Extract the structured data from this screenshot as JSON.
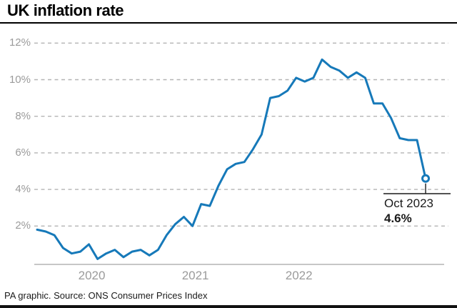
{
  "header": {
    "title": "UK inflation rate"
  },
  "footer": {
    "credit": "PA graphic. Source: ONS Consumer Prices Index"
  },
  "annotation": {
    "date_label": "Oct 2023",
    "value_label": "4.6%"
  },
  "colors": {
    "line": "#1679b9",
    "grid": "#b4b4b4",
    "axis_line": "#b4b4b4",
    "axis_text": "#9b9b9b",
    "title": "#000000",
    "annotation_text": "#1a1a1a",
    "background": "#ffffff",
    "bottom_bar": "#111111"
  },
  "chart_data": {
    "type": "line",
    "title": "UK inflation rate",
    "xlabel": "",
    "ylabel": "",
    "frequency": "monthly",
    "x_range": [
      "Jan 2020",
      "Oct 2023"
    ],
    "x_tick_labels": [
      "2020",
      "2021",
      "2022"
    ],
    "y_ticks": [
      {
        "value": 2,
        "label": "2%"
      },
      {
        "value": 4,
        "label": "4%"
      },
      {
        "value": 6,
        "label": "6%"
      },
      {
        "value": 8,
        "label": "8%"
      },
      {
        "value": 10,
        "label": "10%"
      },
      {
        "value": 12,
        "label": "12%"
      }
    ],
    "ylim": [
      0,
      13
    ],
    "grid": "horizontal-dashed",
    "legend_position": "none",
    "months": [
      "Jan 2020",
      "Feb 2020",
      "Mar 2020",
      "Apr 2020",
      "May 2020",
      "Jun 2020",
      "Jul 2020",
      "Aug 2020",
      "Sep 2020",
      "Oct 2020",
      "Nov 2020",
      "Dec 2020",
      "Jan 2021",
      "Feb 2021",
      "Mar 2021",
      "Apr 2021",
      "May 2021",
      "Jun 2021",
      "Jul 2021",
      "Aug 2021",
      "Sep 2021",
      "Oct 2021",
      "Nov 2021",
      "Dec 2021",
      "Jan 2022",
      "Feb 2022",
      "Mar 2022",
      "Apr 2022",
      "May 2022",
      "Jun 2022",
      "Jul 2022",
      "Aug 2022",
      "Sep 2022",
      "Oct 2022",
      "Nov 2022",
      "Dec 2022",
      "Jan 2023",
      "Feb 2023",
      "Mar 2023",
      "Apr 2023",
      "May 2023",
      "Jun 2023",
      "Jul 2023",
      "Aug 2023",
      "Sep 2023",
      "Oct 2023"
    ],
    "series": [
      {
        "name": "UK CPI annual inflation rate (%)",
        "values": [
          1.8,
          1.7,
          1.5,
          0.8,
          0.5,
          0.6,
          1.0,
          0.2,
          0.5,
          0.7,
          0.3,
          0.6,
          0.7,
          0.4,
          0.7,
          1.5,
          2.1,
          2.5,
          2.0,
          3.2,
          3.1,
          4.2,
          5.1,
          5.4,
          5.5,
          6.2,
          7.0,
          9.0,
          9.1,
          9.4,
          10.1,
          9.9,
          10.1,
          11.1,
          10.7,
          10.5,
          10.1,
          10.4,
          10.1,
          8.7,
          8.7,
          7.9,
          6.8,
          6.7,
          6.7,
          4.6
        ]
      }
    ],
    "end_point": {
      "month": "Oct 2023",
      "value": 4.6
    }
  }
}
